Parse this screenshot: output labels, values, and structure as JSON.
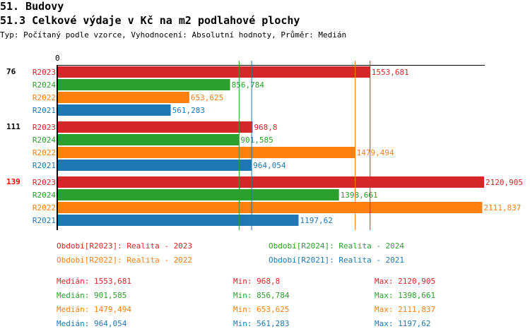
{
  "header": {
    "section": "51. Budovy",
    "title": "51.3 Celkové výdaje v Kč na m2 podlahové plochy",
    "subtitle": "Typ: Počítaný podle vzorce, Vyhodnocení: Absolutní hodnoty, Průměr: Medián"
  },
  "chart_data": {
    "type": "bar",
    "orientation": "horizontal",
    "x_tick_label": "0",
    "xlim": [
      0,
      2120.905
    ],
    "series_colors": {
      "R2023": "#d62728",
      "R2024": "#2ca02c",
      "R2022": "#ff7f0e",
      "R2021": "#1f77b4"
    },
    "groups": [
      {
        "label": "76",
        "label_color": "#000000",
        "bars": [
          {
            "series": "R2023",
            "value": 1553.681,
            "label": "1553,681"
          },
          {
            "series": "R2024",
            "value": 856.784,
            "label": "856,784"
          },
          {
            "series": "R2022",
            "value": 653.625,
            "label": "653,625"
          },
          {
            "series": "R2021",
            "value": 561.283,
            "label": "561,283"
          }
        ]
      },
      {
        "label": "111",
        "label_color": "#000000",
        "bars": [
          {
            "series": "R2023",
            "value": 968.8,
            "label": "968,8"
          },
          {
            "series": "R2024",
            "value": 901.585,
            "label": "901,585"
          },
          {
            "series": "R2022",
            "value": 1479.494,
            "label": "1479,494"
          },
          {
            "series": "R2021",
            "value": 964.054,
            "label": "964,054"
          }
        ]
      },
      {
        "label": "139",
        "label_color": "#ff0000",
        "bars": [
          {
            "series": "R2023",
            "value": 2120.905,
            "label": "2120,905"
          },
          {
            "series": "R2024",
            "value": 1398.661,
            "label": "1398,661"
          },
          {
            "series": "R2022",
            "value": 2111.837,
            "label": "2111,837"
          },
          {
            "series": "R2021",
            "value": 1197.62,
            "label": "1197,62"
          }
        ]
      }
    ],
    "median_lines": [
      {
        "series": "R2024",
        "value": 901.585
      },
      {
        "series": "R2021",
        "value": 964.054
      },
      {
        "series": "R2022",
        "value": 1479.494
      },
      {
        "series": "R2023",
        "value": 1553.681
      }
    ],
    "legend": [
      {
        "series": "R2023",
        "text": "Období[R2023]: Realita - 2023"
      },
      {
        "series": "R2024",
        "text": "Období[R2024]: Realita - 2024"
      },
      {
        "series": "R2022",
        "text": "Období[R2022]: Realita - 2022"
      },
      {
        "series": "R2021",
        "text": "Období[R2021]: Realita - 2021"
      }
    ],
    "stats": [
      {
        "series": "R2023",
        "median": "Medián: 1553,681",
        "min": "Min: 968,8",
        "max": "Max: 2120,905"
      },
      {
        "series": "R2024",
        "median": "Medián: 901,585",
        "min": "Min: 856,784",
        "max": "Max: 1398,661"
      },
      {
        "series": "R2022",
        "median": "Medián: 1479,494",
        "min": "Min: 653,625",
        "max": "Max: 2111,837"
      },
      {
        "series": "R2021",
        "median": "Medián: 964,054",
        "min": "Min: 561,283",
        "max": "Max: 1197,62"
      }
    ]
  }
}
